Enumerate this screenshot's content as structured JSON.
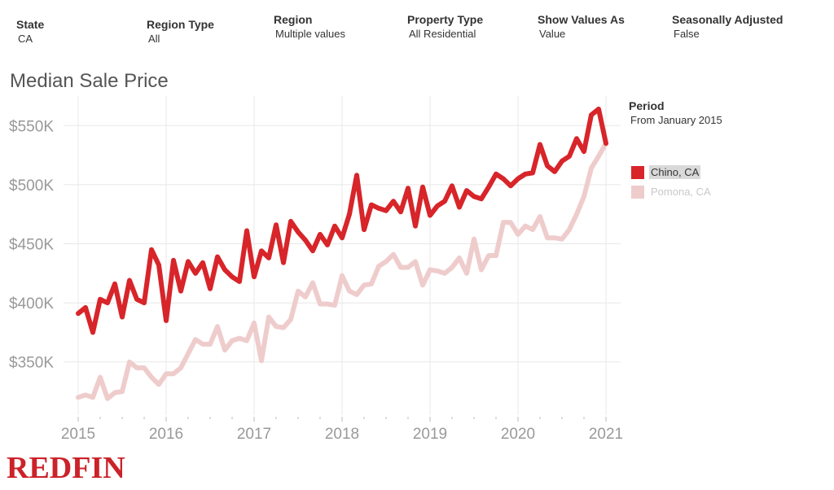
{
  "filters": [
    {
      "label": "State",
      "value": "CA"
    },
    {
      "label": "Region Type",
      "value": "All"
    },
    {
      "label": "Region",
      "value": "Multiple values"
    },
    {
      "label": "Property Type",
      "value": "All Residential"
    },
    {
      "label": "Show Values As",
      "value": "Value"
    },
    {
      "label": "Seasonally Adjusted",
      "value": "False"
    }
  ],
  "legend": {
    "period_label": "Period",
    "period_value": "From January 2015"
  },
  "brand": {
    "logo_text": "REDFIN",
    "color": "#cc2229"
  },
  "chart_data": {
    "type": "line",
    "title": "Median Sale Price",
    "xlabel": "",
    "ylabel": "",
    "x_ticks": [
      "2015",
      "2016",
      "2017",
      "2018",
      "2019",
      "2020",
      "2021"
    ],
    "y_ticks": [
      "$350K",
      "$400K",
      "$450K",
      "$500K",
      "$550K"
    ],
    "ylim": [
      305000,
      575000
    ],
    "x_range": [
      "2014-11",
      "2021-03"
    ],
    "grid": true,
    "legend_position": "right",
    "x": [
      "2015-01",
      "2015-02",
      "2015-03",
      "2015-04",
      "2015-05",
      "2015-06",
      "2015-07",
      "2015-08",
      "2015-09",
      "2015-10",
      "2015-11",
      "2015-12",
      "2016-01",
      "2016-02",
      "2016-03",
      "2016-04",
      "2016-05",
      "2016-06",
      "2016-07",
      "2016-08",
      "2016-09",
      "2016-10",
      "2016-11",
      "2016-12",
      "2017-01",
      "2017-02",
      "2017-03",
      "2017-04",
      "2017-05",
      "2017-06",
      "2017-07",
      "2017-08",
      "2017-09",
      "2017-10",
      "2017-11",
      "2017-12",
      "2018-01",
      "2018-02",
      "2018-03",
      "2018-04",
      "2018-05",
      "2018-06",
      "2018-07",
      "2018-08",
      "2018-09",
      "2018-10",
      "2018-11",
      "2018-12",
      "2019-01",
      "2019-02",
      "2019-03",
      "2019-04",
      "2019-05",
      "2019-06",
      "2019-07",
      "2019-08",
      "2019-09",
      "2019-10",
      "2019-11",
      "2019-12",
      "2020-01",
      "2020-02",
      "2020-03",
      "2020-04",
      "2020-05",
      "2020-06",
      "2020-07",
      "2020-08",
      "2020-09",
      "2020-10",
      "2020-11",
      "2020-12",
      "2021-01"
    ],
    "series": [
      {
        "name": "Chino, CA",
        "color": "#d7252a",
        "values": [
          391000,
          396000,
          375000,
          403000,
          400000,
          416000,
          388000,
          419000,
          403000,
          400000,
          445000,
          432000,
          385000,
          436000,
          410000,
          435000,
          425000,
          434000,
          412000,
          439000,
          428000,
          422000,
          418000,
          461000,
          422000,
          444000,
          438000,
          466000,
          434000,
          469000,
          460000,
          453000,
          444000,
          458000,
          449000,
          465000,
          455000,
          475000,
          508000,
          462000,
          483000,
          480000,
          478000,
          486000,
          477000,
          497000,
          465000,
          498000,
          474000,
          482000,
          486000,
          499000,
          481000,
          495000,
          490000,
          488000,
          498000,
          509000,
          505000,
          499000,
          505000,
          509000,
          510000,
          534000,
          516000,
          511000,
          520000,
          524000,
          539000,
          528000,
          559000,
          564000,
          535000
        ]
      },
      {
        "name": "Pomona, CA",
        "color": "#efcccc",
        "values": [
          320000,
          322000,
          320000,
          337000,
          319000,
          324000,
          325000,
          350000,
          345000,
          345000,
          337000,
          331000,
          340000,
          340000,
          345000,
          357000,
          369000,
          365000,
          365000,
          380000,
          360000,
          368000,
          370000,
          368000,
          383000,
          351000,
          388000,
          380000,
          379000,
          386000,
          410000,
          405000,
          417000,
          399000,
          399000,
          398000,
          423000,
          410000,
          407000,
          415000,
          416000,
          431000,
          435000,
          441000,
          430000,
          430000,
          435000,
          415000,
          428000,
          427000,
          425000,
          430000,
          438000,
          425000,
          454000,
          428000,
          440000,
          440000,
          468000,
          468000,
          458000,
          465000,
          462000,
          473000,
          455000,
          455000,
          454000,
          462000,
          475000,
          490000,
          514000,
          524000,
          535000
        ]
      }
    ]
  }
}
